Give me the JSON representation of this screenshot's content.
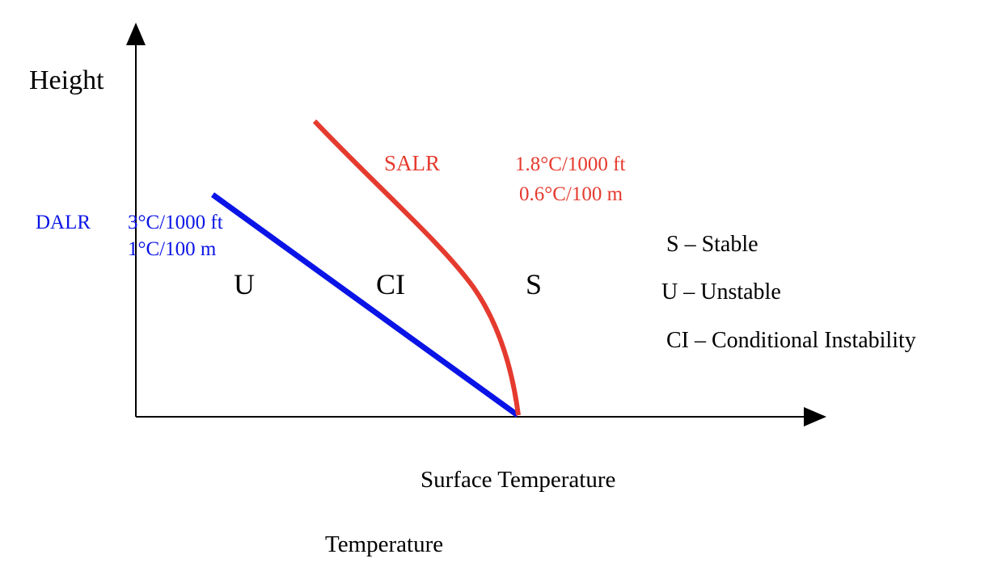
{
  "axes": {
    "y_label": "Height",
    "x_label": "Surface Temperature",
    "bottom_label": "Temperature"
  },
  "dalr": {
    "name": "DALR",
    "rate_ft": "3°C/1000 ft",
    "rate_m": "1°C/100 m",
    "color": "#0a14e6"
  },
  "salr": {
    "name": "SALR",
    "rate_ft": "1.8°C/1000 ft",
    "rate_m": "0.6°C/100 m",
    "color": "#e53a2e"
  },
  "regions": {
    "unstable": "U",
    "conditional": "CI",
    "stable": "S"
  },
  "legend": [
    "S – Stable",
    "U – Unstable",
    "CI – Conditional Instability"
  ],
  "axis_color": "#000000"
}
